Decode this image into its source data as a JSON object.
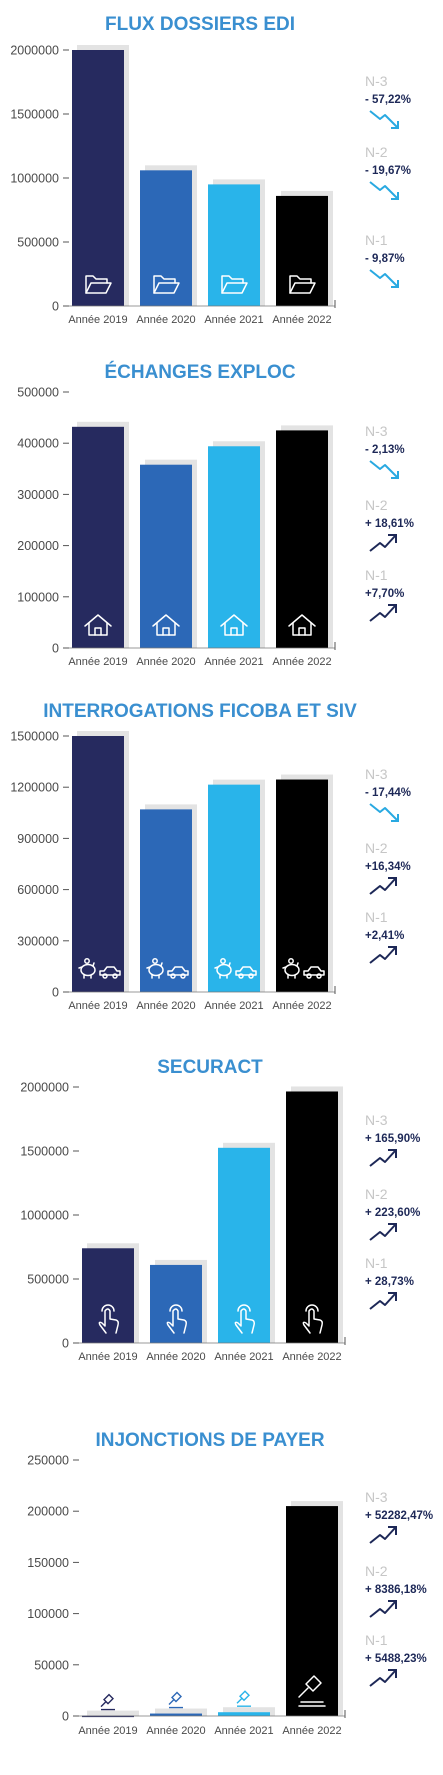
{
  "colors": {
    "title": "#3a8fd0",
    "bar_2019": "#262a5f",
    "bar_2020": "#2c68b7",
    "bar_2021": "#29b4ea",
    "bar_2022": "#000000",
    "shadow": "#e3e3e3",
    "trend_down": "#29a9e1",
    "trend_up": "#1d2857",
    "change_label": "#c6c6c6"
  },
  "chart_data": [
    {
      "type": "bar",
      "title": "FLUX DOSSIERS EDI",
      "categories": [
        "Année 2019",
        "Année 2020",
        "Année 2021",
        "Année 2022"
      ],
      "values": [
        2000000,
        1060000,
        950000,
        860000
      ],
      "ylim": [
        0,
        2000000
      ],
      "yticks": [
        "0",
        "500000",
        "1000000",
        "1500000",
        "2000000"
      ],
      "icon": "folder-icon",
      "changes": [
        {
          "label": "N-3",
          "value": "- 57,22%",
          "trend": "down"
        },
        {
          "label": "N-2",
          "value": "- 19,67%",
          "trend": "down"
        },
        {
          "label": "N-1",
          "value": "- 9,87%",
          "trend": "down"
        }
      ]
    },
    {
      "type": "bar",
      "title": "ÉCHANGES EXPLOC",
      "categories": [
        "Année 2019",
        "Année 2020",
        "Année 2021",
        "Année 2022"
      ],
      "values": [
        432000,
        358000,
        394000,
        425000
      ],
      "ylim": [
        0,
        500000
      ],
      "yticks": [
        "0",
        "100000",
        "200000",
        "300000",
        "400000",
        "500000"
      ],
      "icon": "house-icon",
      "changes": [
        {
          "label": "N-3",
          "value": "- 2,13%",
          "trend": "down"
        },
        {
          "label": "N-2",
          "value": "+ 18,61%",
          "trend": "up"
        },
        {
          "label": "N-1",
          "value": "+7,70%",
          "trend": "up"
        }
      ]
    },
    {
      "type": "bar",
      "title": "INTERROGATIONS FICOBA ET SIV",
      "categories": [
        "Année 2019",
        "Année 2020",
        "Année 2021",
        "Année 2022"
      ],
      "values": [
        1500000,
        1070000,
        1215000,
        1245000
      ],
      "ylim": [
        0,
        1500000
      ],
      "yticks": [
        "0",
        "300000",
        "600000",
        "900000",
        "1200000",
        "1500000"
      ],
      "icon": "piggy-bank-car-icon",
      "changes": [
        {
          "label": "N-3",
          "value": "- 17,44%",
          "trend": "down"
        },
        {
          "label": "N-2",
          "value": "+16,34%",
          "trend": "up"
        },
        {
          "label": "N-1",
          "value": "+2,41%",
          "trend": "up"
        }
      ]
    },
    {
      "type": "bar",
      "title": "SECURACT",
      "categories": [
        "Année 2019",
        "Année 2020",
        "Année 2021",
        "Année 2022"
      ],
      "values": [
        740000,
        610000,
        1525000,
        1965000
      ],
      "ylim": [
        0,
        2000000
      ],
      "yticks": [
        "0",
        "500000",
        "1000000",
        "1500000",
        "2000000"
      ],
      "icon": "pointing-hand-icon",
      "changes": [
        {
          "label": "N-3",
          "value": "+ 165,90%",
          "trend": "up"
        },
        {
          "label": "N-2",
          "value": "+ 223,60%",
          "trend": "up"
        },
        {
          "label": "N-1",
          "value": "+ 28,73%",
          "trend": "up"
        }
      ]
    },
    {
      "type": "bar",
      "title": "INJONCTIONS DE PAYER",
      "categories": [
        "Année 2019",
        "Année 2020",
        "Année 2021",
        "Année 2022"
      ],
      "values": [
        380,
        2400,
        3700,
        205000
      ],
      "ylim": [
        0,
        250000
      ],
      "yticks": [
        "0",
        "50000",
        "100000",
        "150000",
        "200000",
        "250000"
      ],
      "icon": "gavel-icon",
      "changes": [
        {
          "label": "N-3",
          "value": "+ 52282,47%",
          "trend": "up"
        },
        {
          "label": "N-2",
          "value": "+ 8386,18%",
          "trend": "up"
        },
        {
          "label": "N-1",
          "value": "+ 5488,23%",
          "trend": "up"
        }
      ]
    }
  ]
}
